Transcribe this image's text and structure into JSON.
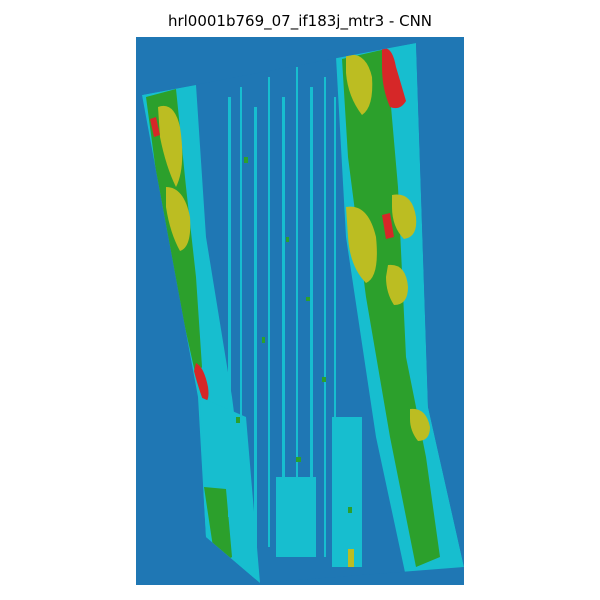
{
  "figure": {
    "title": "hrl0001b769_07_if183j_mtr3 - CNN"
  },
  "colors": {
    "background_class": "#1f77b4",
    "cyan_class": "#17becf",
    "green_class": "#2ca02c",
    "olive_class": "#bcbd22",
    "red_class": "#d62728"
  }
}
